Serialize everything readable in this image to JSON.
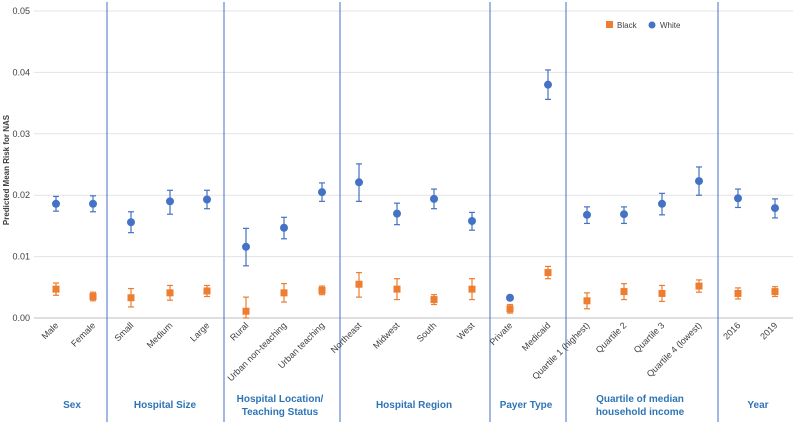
{
  "chart_data": {
    "type": "scatter",
    "ylabel": "Predicted Mean Risk for NAS",
    "ylim": [
      0,
      0.05
    ],
    "yticks": [
      "0.00",
      "0.01",
      "0.02",
      "0.03",
      "0.04",
      "0.05"
    ],
    "grid": true,
    "legend_position": "top-right",
    "categories": [
      "Male",
      "Female",
      "Small",
      "Medium",
      "Large",
      "Rural",
      "Urban non-teaching",
      "Urban teaching",
      "Northeast",
      "Midwest",
      "South",
      "West",
      "Private",
      "Medicaid",
      "Quartile 1 (highest)",
      "Quartile 2",
      "Quartile 3",
      "Quartile 4 (lowest)",
      "2016",
      "2019"
    ],
    "groups": [
      {
        "label": [
          "Sex"
        ],
        "count": 2
      },
      {
        "label": [
          "Hospital Size"
        ],
        "count": 3
      },
      {
        "label": [
          "Hospital Location/",
          "Teaching Status"
        ],
        "count": 3
      },
      {
        "label": [
          "Hospital Region"
        ],
        "count": 4
      },
      {
        "label": [
          "Payer Type"
        ],
        "count": 2
      },
      {
        "label": [
          "Quartile of median",
          "household income"
        ],
        "count": 4
      },
      {
        "label": [
          "Year"
        ],
        "count": 2
      }
    ],
    "series": [
      {
        "name": "Black",
        "color": "#ed7d31",
        "marker": "square",
        "values": [
          0.0047,
          0.0035,
          0.0033,
          0.0041,
          0.0044,
          0.0011,
          0.0041,
          0.0045,
          0.0055,
          0.0047,
          0.003,
          0.0047,
          0.0015,
          0.0074,
          0.0028,
          0.0043,
          0.004,
          0.0052,
          0.004,
          0.0043
        ],
        "lower": [
          0.0037,
          0.0028,
          0.0018,
          0.0029,
          0.0035,
          0.0,
          0.0026,
          0.0038,
          0.0034,
          0.003,
          0.0022,
          0.003,
          0.0008,
          0.0064,
          0.0015,
          0.003,
          0.0027,
          0.0042,
          0.0031,
          0.0035
        ],
        "upper": [
          0.0057,
          0.0042,
          0.0048,
          0.0053,
          0.0053,
          0.0034,
          0.0056,
          0.0052,
          0.0074,
          0.0064,
          0.0038,
          0.0064,
          0.0022,
          0.0084,
          0.0041,
          0.0056,
          0.0053,
          0.0062,
          0.0049,
          0.0051
        ]
      },
      {
        "name": "White",
        "color": "#4472c4",
        "marker": "circle",
        "values": [
          0.0186,
          0.0186,
          0.0156,
          0.019,
          0.0193,
          0.0116,
          0.0147,
          0.0205,
          0.0221,
          0.017,
          0.0194,
          0.0158,
          0.0033,
          0.038,
          0.0168,
          0.0169,
          0.0186,
          0.0223,
          0.0195,
          0.0179
        ],
        "lower": [
          0.0174,
          0.0173,
          0.0139,
          0.0169,
          0.0178,
          0.0085,
          0.0129,
          0.019,
          0.019,
          0.0152,
          0.0178,
          0.0143,
          0.003,
          0.0356,
          0.0154,
          0.0154,
          0.0168,
          0.02,
          0.018,
          0.0163
        ],
        "upper": [
          0.0198,
          0.0199,
          0.0173,
          0.0208,
          0.0208,
          0.0146,
          0.0164,
          0.022,
          0.0251,
          0.0187,
          0.021,
          0.0172,
          0.0036,
          0.0404,
          0.0181,
          0.0181,
          0.0203,
          0.0246,
          0.021,
          0.0194
        ]
      }
    ]
  }
}
